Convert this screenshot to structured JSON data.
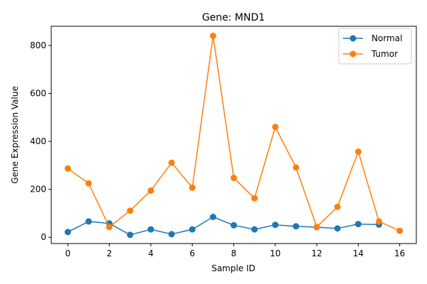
{
  "chart_data": {
    "type": "line",
    "title": "Gene: MND1",
    "xlabel": "Sample ID",
    "ylabel": "Gene Expression Value",
    "xlim": [
      -0.8,
      16.8
    ],
    "ylim": [
      -26,
      880
    ],
    "xticks": [
      0,
      2,
      4,
      6,
      8,
      10,
      12,
      14,
      16
    ],
    "yticks": [
      0,
      200,
      400,
      600,
      800
    ],
    "grid": false,
    "legend_position": "top-right",
    "series": [
      {
        "name": "Normal",
        "color": "#1f77b4",
        "marker": "circle",
        "x": [
          0,
          1,
          2,
          3,
          4,
          5,
          6,
          7,
          8,
          9,
          10,
          11,
          12,
          13,
          14,
          15
        ],
        "y": [
          22,
          66,
          58,
          10,
          33,
          13,
          33,
          85,
          50,
          33,
          52,
          46,
          42,
          37,
          55,
          53
        ]
      },
      {
        "name": "Tumor",
        "color": "#ff7f0e",
        "marker": "circle",
        "x": [
          0,
          1,
          2,
          3,
          4,
          5,
          6,
          7,
          8,
          9,
          10,
          11,
          12,
          13,
          14,
          15,
          16
        ],
        "y": [
          287,
          225,
          43,
          111,
          195,
          311,
          207,
          840,
          248,
          163,
          460,
          291,
          43,
          127,
          357,
          66,
          27
        ]
      }
    ]
  }
}
